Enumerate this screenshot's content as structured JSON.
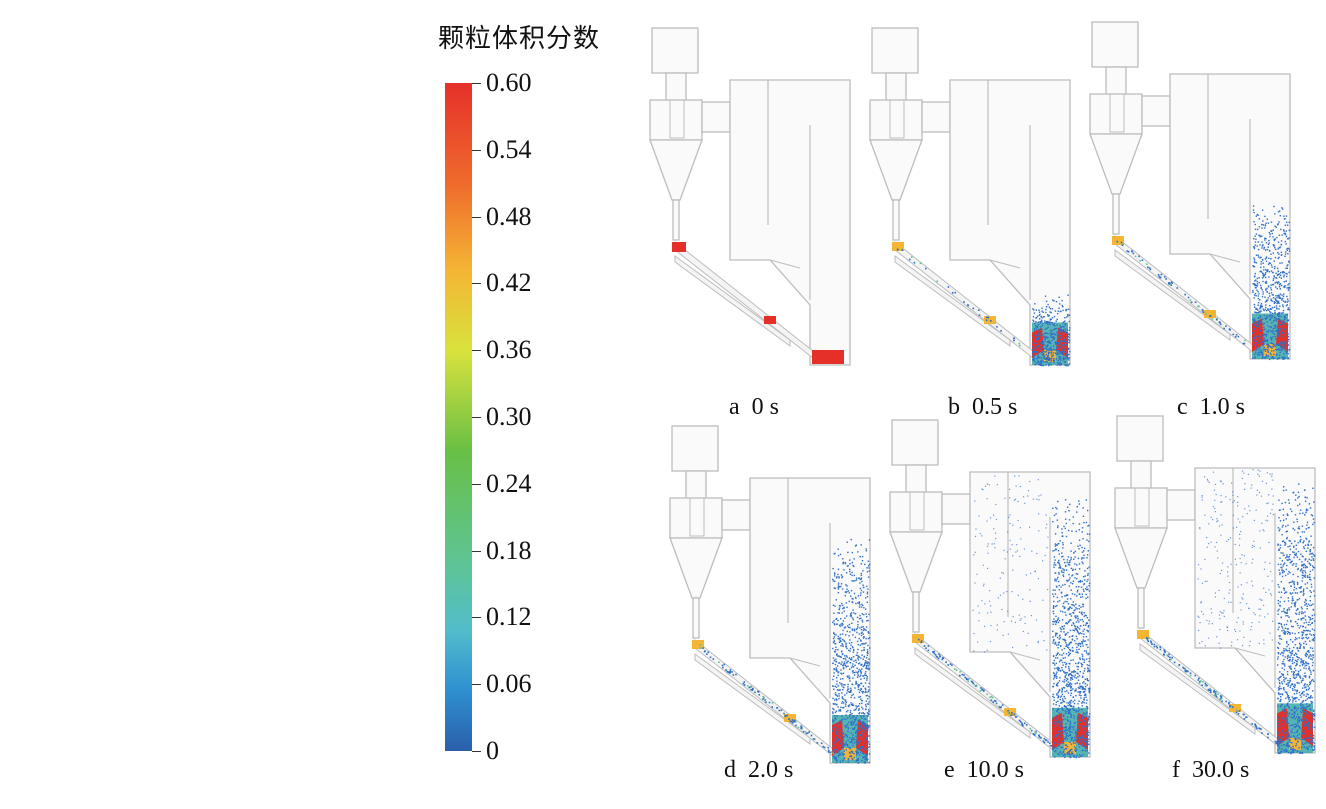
{
  "legend": {
    "title": "颗粒体积分数",
    "ticks": [
      "0.60",
      "0.54",
      "0.48",
      "0.42",
      "0.36",
      "0.30",
      "0.24",
      "0.18",
      "0.12",
      "0.06",
      "0"
    ]
  },
  "panels": [
    {
      "letter": "a",
      "time": "0 s",
      "fill": 0.0
    },
    {
      "letter": "b",
      "time": "0.5 s",
      "fill": 0.25
    },
    {
      "letter": "c",
      "time": "1.0 s",
      "fill": 0.55
    },
    {
      "letter": "d",
      "time": "2.0 s",
      "fill": 0.8
    },
    {
      "letter": "e",
      "time": "10.0 s",
      "fill": 0.92
    },
    {
      "letter": "f",
      "time": "30.0 s",
      "fill": 0.96
    }
  ],
  "colors": {
    "geometry": "#bdbdbd",
    "particle_dense": "#e5302a",
    "particle_mid": "#f4b534",
    "particle_low": "#2f6fc6"
  }
}
